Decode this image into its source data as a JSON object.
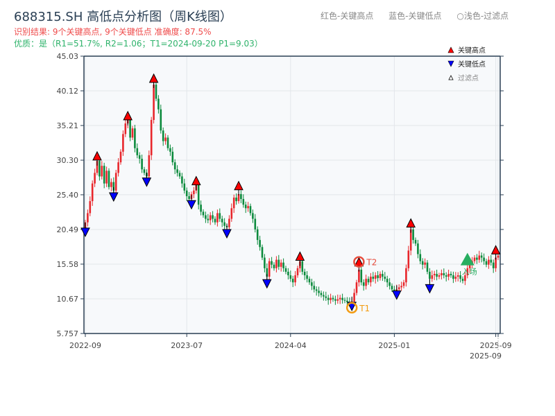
{
  "title": "688315.SH 高低点分析图（周K线图）",
  "result_text": "识别结果: 9个关键高点, 9个关键低点   准确度: 87.5%",
  "quality_text": "优质：是（R1=51.7%, R2=1.06；T1=2024-09-20 P1=9.03）",
  "top_legend": [
    "红色-关键高点",
    "蓝色-关键低点",
    "○浅色-过滤点"
  ],
  "colors": {
    "up": "#e8262b",
    "down": "#0b8a3c",
    "high_marker": "#ff0000",
    "low_marker": "#0000ff",
    "t1": "#f39c12",
    "t2": "#e74c3c",
    "entry": "#27ae60",
    "axis": "#2a3f54",
    "plot_bg": "#f7f9fb"
  },
  "chart_data": {
    "type": "candlestick",
    "ylim": [
      5.757,
      45.03
    ],
    "y_ticks": [
      "5.757",
      "10.67",
      "15.58",
      "20.49",
      "25.40",
      "30.30",
      "35.21",
      "40.12",
      "45.03"
    ],
    "x_ticks": [
      {
        "label": "2022-09",
        "week": 0
      },
      {
        "label": "2023-07",
        "week": 43
      },
      {
        "label": "2024-04",
        "week": 87
      },
      {
        "label": "2025-01",
        "week": 131
      },
      {
        "label": "2025-09",
        "week": 174
      },
      {
        "label": "2025-09",
        "week": 175
      }
    ],
    "weekly_close": [
      21.5,
      22.8,
      24.5,
      27.0,
      28.5,
      30.2,
      28.0,
      29.5,
      27.0,
      28.8,
      26.5,
      27.2,
      26.0,
      28.5,
      30.0,
      31.5,
      34.0,
      35.5,
      36.0,
      33.5,
      34.8,
      32.0,
      31.0,
      30.5,
      29.0,
      28.5,
      28.0,
      31.0,
      36.0,
      41.0,
      39.0,
      37.5,
      34.5,
      33.0,
      33.5,
      32.0,
      31.5,
      30.0,
      29.0,
      28.5,
      28.0,
      27.0,
      26.0,
      25.2,
      24.8,
      25.5,
      26.0,
      27.0,
      24.0,
      23.0,
      22.5,
      22.0,
      21.8,
      22.5,
      22.0,
      21.5,
      22.8,
      22.0,
      21.5,
      21.0,
      20.8,
      22.0,
      23.5,
      25.0,
      24.5,
      25.5,
      24.8,
      24.0,
      23.5,
      23.8,
      22.8,
      22.0,
      20.5,
      19.0,
      18.0,
      16.5,
      15.0,
      13.8,
      16.0,
      15.5,
      15.0,
      16.2,
      15.2,
      15.8,
      15.0,
      14.5,
      14.0,
      13.5,
      13.0,
      14.0,
      15.0,
      16.0,
      14.5,
      14.0,
      13.5,
      13.0,
      12.5,
      12.0,
      11.8,
      11.5,
      11.2,
      11.0,
      10.8,
      10.5,
      10.8,
      10.6,
      10.4,
      10.6,
      10.8,
      10.5,
      10.4,
      10.2,
      10.0,
      10.3,
      11.5,
      13.0,
      14.8,
      13.0,
      12.5,
      13.5,
      13.0,
      13.8,
      13.5,
      14.0,
      13.6,
      14.2,
      13.8,
      13.5,
      13.0,
      12.5,
      12.0,
      11.8,
      12.0,
      12.3,
      12.5,
      13.0,
      15.0,
      17.5,
      20.5,
      19.0,
      18.5,
      17.0,
      16.0,
      15.5,
      15.8,
      14.5,
      13.5,
      14.0,
      14.2,
      13.8,
      14.0,
      14.3,
      14.0,
      13.8,
      14.2,
      14.0,
      13.5,
      13.8,
      14.0,
      13.5,
      13.2,
      14.0,
      15.0,
      15.5,
      16.0,
      16.5,
      16.2,
      16.8,
      16.5,
      16.0,
      15.5,
      16.2,
      15.8,
      15.0,
      16.5,
      16.8
    ],
    "key_highs": [
      {
        "week": 5,
        "price": 30.9
      },
      {
        "week": 18,
        "price": 36.6
      },
      {
        "week": 29,
        "price": 41.9
      },
      {
        "week": 47,
        "price": 27.4
      },
      {
        "week": 65,
        "price": 26.7
      },
      {
        "week": 91,
        "price": 16.7
      },
      {
        "week": 116,
        "price": 15.9
      },
      {
        "week": 138,
        "price": 21.4
      },
      {
        "week": 174,
        "price": 17.6
      }
    ],
    "key_lows": [
      {
        "week": 0,
        "price": 20.1
      },
      {
        "week": 12,
        "price": 25.1
      },
      {
        "week": 26,
        "price": 27.2
      },
      {
        "week": 45,
        "price": 24.0
      },
      {
        "week": 60,
        "price": 19.9
      },
      {
        "week": 77,
        "price": 12.8
      },
      {
        "week": 113,
        "price": 9.6
      },
      {
        "week": 132,
        "price": 11.2
      },
      {
        "week": 146,
        "price": 12.1
      }
    ],
    "annotations": [
      {
        "label": "T1",
        "week": 113,
        "price": 9.4,
        "kind": "t1"
      },
      {
        "label": "T2",
        "week": 116,
        "price": 15.9,
        "kind": "t2"
      },
      {
        "label": "入场",
        "week": 162,
        "price": 16.0,
        "kind": "entry"
      }
    ],
    "legend": {
      "placement": "top-right",
      "entries": [
        "关键高点",
        "关键低点",
        "过滤点"
      ]
    }
  }
}
